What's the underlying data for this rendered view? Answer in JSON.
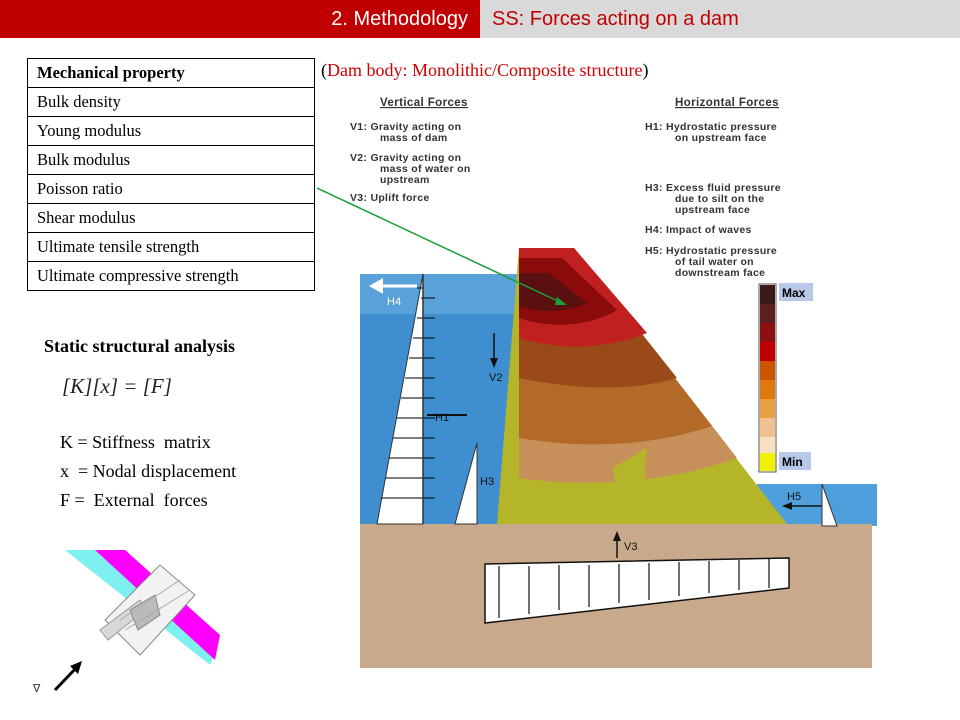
{
  "header": {
    "section": "2. Methodology",
    "topic": "SS: Forces acting on a dam"
  },
  "subtitle": {
    "open_paren": "(",
    "text": "Dam body: Monolithic/Composite structure",
    "close_paren": ")"
  },
  "property_table": {
    "header": "Mechanical property",
    "rows": [
      "Bulk density",
      "Young modulus",
      "Bulk modulus",
      "Poisson ratio",
      "Shear modulus",
      "Ultimate tensile strength",
      "Ultimate compressive strength"
    ]
  },
  "analysis": {
    "title": "Static structural  analysis",
    "equation": "[K][x] = [F]",
    "definitions": [
      "K = Stiffness  matrix",
      "x  = Nodal displacement",
      "F =  External  forces"
    ]
  },
  "figure": {
    "vertical_heading": "Vertical Forces",
    "horizontal_heading": "Horizontal Forces",
    "v1": [
      "V1: Gravity acting on",
      "mass of dam"
    ],
    "v2": [
      "V2: Gravity acting on",
      "mass of water on",
      "upstream"
    ],
    "v3": [
      "V3: Uplift force"
    ],
    "h1": [
      "H1: Hydrostatic pressure",
      "on upstream face"
    ],
    "h3": [
      "H3: Excess fluid pressure",
      "due to silt on the",
      "upstream face"
    ],
    "h4": [
      "H4: Impact of waves"
    ],
    "h5": [
      "H5: Hydrostatic pressure",
      "of tail water on",
      "downstream face"
    ],
    "labels": {
      "H4": "H4",
      "V2": "V2",
      "H1": "H1",
      "H3": "H3",
      "H5": "H5",
      "V3": "V3"
    },
    "legend": {
      "max": "Max",
      "min": "Min"
    },
    "colors": {
      "water": "#3f8fd0",
      "ground": "#c9a98c",
      "dam_base": "#b5b52a",
      "legend": [
        "#3a1a1a",
        "#5a2020",
        "#8b1010",
        "#c00000",
        "#cc5500",
        "#e07810",
        "#e8a040",
        "#f0c090",
        "#f7e0c0",
        "#f0f000"
      ]
    }
  }
}
